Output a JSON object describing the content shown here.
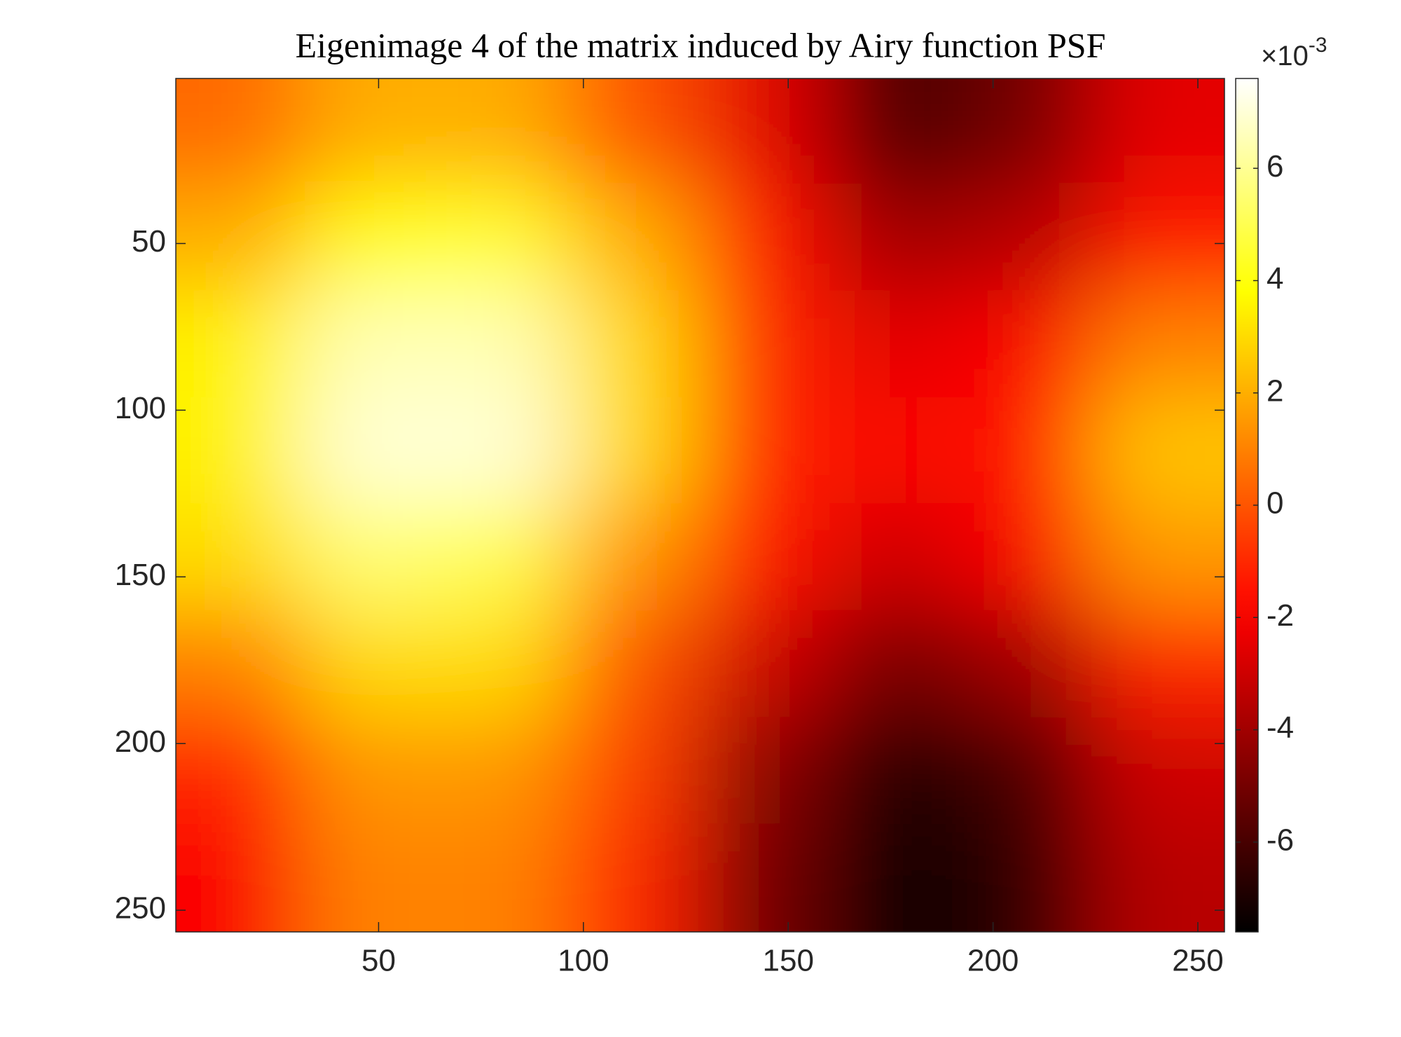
{
  "chart_data": {
    "type": "heatmap",
    "title": "Eigenimage 4 of the matrix induced by Airy function PSF",
    "x": [
      16,
      48,
      80,
      112,
      144,
      176,
      208,
      240
    ],
    "y": [
      16,
      48,
      80,
      112,
      144,
      176,
      208,
      240
    ],
    "z": [
      [
        0.5,
        2,
        2,
        0,
        -2.5,
        -6,
        -5,
        -2.5
      ],
      [
        2,
        4,
        4.5,
        2,
        -1.5,
        -4,
        -3.5,
        -1.5
      ],
      [
        3.5,
        6.5,
        6.5,
        3,
        -1,
        -2.5,
        -2,
        1
      ],
      [
        3.5,
        7,
        7,
        3,
        -1,
        -2,
        -1.5,
        2.5
      ],
      [
        3,
        5.5,
        5,
        1.5,
        -1.5,
        -3,
        -2,
        1.5
      ],
      [
        1,
        3,
        3,
        0,
        -3,
        -5,
        -4,
        -1
      ],
      [
        -1,
        1.5,
        1.5,
        -0.5,
        -4.5,
        -7,
        -6,
        -3
      ],
      [
        -2,
        1,
        1,
        -1,
        -5,
        -7.5,
        -6.5,
        -3.5
      ]
    ],
    "xlim": [
      0.5,
      256.5
    ],
    "ylim": [
      0.5,
      256.5
    ],
    "y_reversed": true,
    "xticks": [
      50,
      100,
      150,
      200,
      250
    ],
    "yticks": [
      50,
      100,
      150,
      200,
      250
    ],
    "colormap": "hot",
    "clim": [
      -7.6,
      7.6
    ],
    "cticks": [
      -6,
      -4,
      -2,
      0,
      2,
      4,
      6
    ],
    "colorbar_multiplier": {
      "base": "×10",
      "exponent": "-3"
    }
  }
}
